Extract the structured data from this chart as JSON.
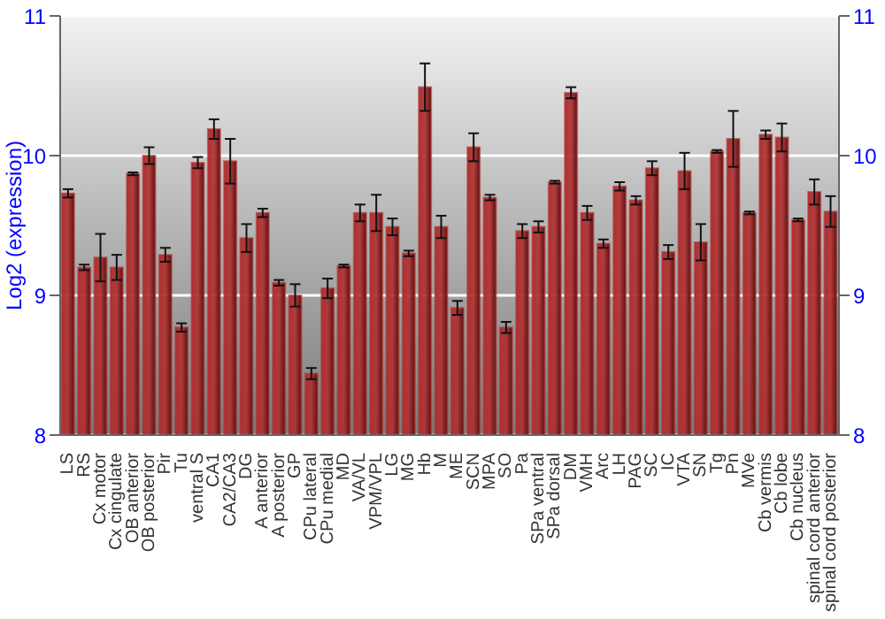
{
  "chart_data": {
    "type": "bar",
    "ylabel": "Log2 (expression)",
    "categories": [
      "LS",
      "RS",
      "Cx motor",
      "Cx cingulate",
      "OB anterior",
      "OB posterior",
      "Pir",
      "Tu",
      "ventral S",
      "CA1",
      "CA2/CA3",
      "DG",
      "A anterior",
      "A posterior",
      "GP",
      "CPu lateral",
      "CPu medial",
      "MD",
      "VA/VL",
      "VPM/VPL",
      "LG",
      "MG",
      "Hb",
      "M",
      "ME",
      "SCN",
      "MPA",
      "SO",
      "Pa",
      "SPa ventral",
      "SPa dorsal",
      "DM",
      "VMH",
      "Arc",
      "LH",
      "PAG",
      "SC",
      "IC",
      "VTA",
      "SN",
      "Tg",
      "Pn",
      "MVe",
      "Cb vermis",
      "Cb lobe",
      "Cb nucleus",
      "spinal cord anterior",
      "spinal cord posterior"
    ],
    "values": [
      9.73,
      9.2,
      9.27,
      9.2,
      9.87,
      10.0,
      9.29,
      8.77,
      9.95,
      10.19,
      9.96,
      9.41,
      9.59,
      9.09,
      9.0,
      8.44,
      9.05,
      9.21,
      9.59,
      9.59,
      9.49,
      9.3,
      10.49,
      9.49,
      8.91,
      10.06,
      9.7,
      8.77,
      9.46,
      9.49,
      9.81,
      10.45,
      9.59,
      9.37,
      9.78,
      9.68,
      9.91,
      9.31,
      9.89,
      9.38,
      10.03,
      10.12,
      9.59,
      10.15,
      10.13,
      9.54,
      9.74,
      9.6
    ],
    "errors": [
      0.03,
      0.02,
      0.17,
      0.09,
      0.01,
      0.06,
      0.05,
      0.03,
      0.04,
      0.07,
      0.16,
      0.1,
      0.03,
      0.02,
      0.08,
      0.04,
      0.07,
      0.01,
      0.06,
      0.13,
      0.06,
      0.02,
      0.17,
      0.08,
      0.05,
      0.1,
      0.02,
      0.04,
      0.05,
      0.04,
      0.01,
      0.04,
      0.05,
      0.03,
      0.03,
      0.03,
      0.05,
      0.05,
      0.13,
      0.13,
      0.01,
      0.2,
      0.01,
      0.03,
      0.1,
      0.01,
      0.09,
      0.11
    ],
    "color": "#b03030",
    "ylim": [
      8,
      11
    ],
    "yticks": [
      8,
      9,
      10,
      11
    ],
    "y2lim": [
      8,
      11
    ],
    "y2ticks": [
      8,
      9,
      10,
      11
    ],
    "grid": "y"
  }
}
